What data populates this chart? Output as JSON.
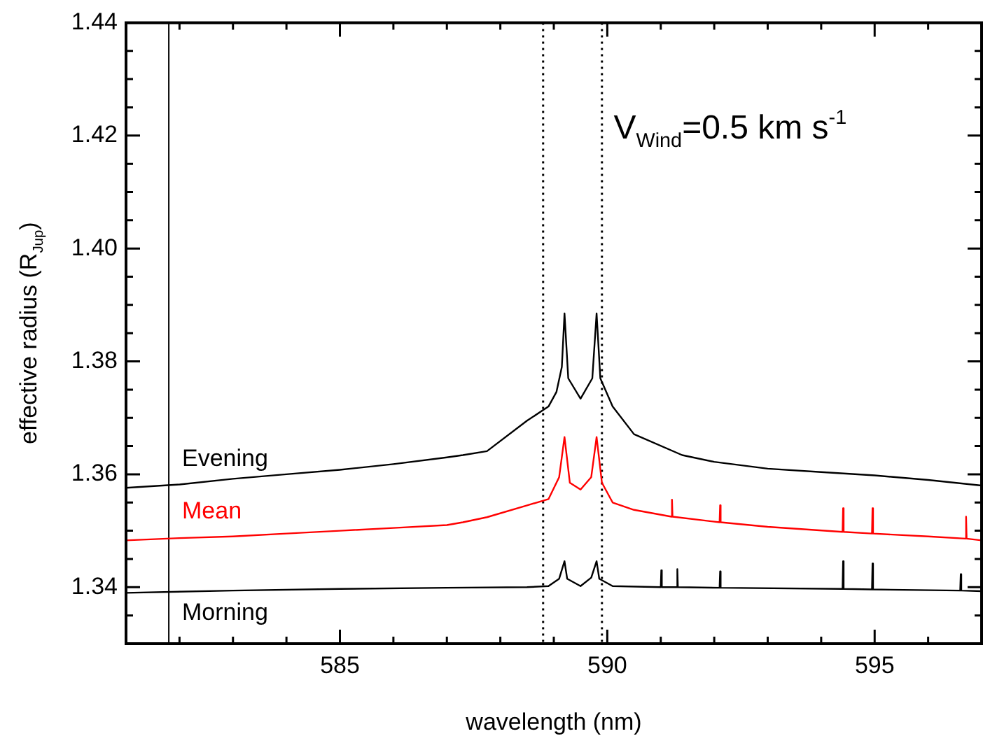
{
  "chart_data": {
    "type": "line",
    "xlabel": "wavelength (nm)",
    "ylabel": "effective radius (R$_{Jup}$)",
    "xlim": [
      581,
      597
    ],
    "ylim": [
      1.33,
      1.44
    ],
    "xticks": [
      {
        "value": 581,
        "label": null
      },
      {
        "value": 582,
        "label": null
      },
      {
        "value": 583,
        "label": null
      },
      {
        "value": 584,
        "label": null
      },
      585,
      {
        "value": 586,
        "label": null
      },
      {
        "value": 587,
        "label": null
      },
      {
        "value": 588,
        "label": null
      },
      {
        "value": 589,
        "label": null
      },
      590,
      {
        "value": 591,
        "label": null
      },
      {
        "value": 592,
        "label": null
      },
      {
        "value": 593,
        "label": null
      },
      {
        "value": 594,
        "label": null
      },
      595,
      {
        "value": 596,
        "label": null
      },
      {
        "value": 597,
        "label": null
      }
    ],
    "yticks": [
      {
        "value": 1.33,
        "label": null
      },
      {
        "value": 1.335,
        "label": null
      },
      1.34,
      {
        "value": 1.345,
        "label": null
      },
      {
        "value": 1.35,
        "label": null
      },
      {
        "value": 1.355,
        "label": null
      },
      1.36,
      {
        "value": 1.365,
        "label": null
      },
      {
        "value": 1.37,
        "label": null
      },
      {
        "value": 1.375,
        "label": null
      },
      1.38,
      {
        "value": 1.385,
        "label": null
      },
      {
        "value": 1.39,
        "label": null
      },
      {
        "value": 1.395,
        "label": null
      },
      {
        "value": 1.4,
        "label": "1.40"
      },
      {
        "value": 1.405,
        "label": null
      },
      {
        "value": 1.41,
        "label": null
      },
      {
        "value": 1.415,
        "label": null
      },
      1.42,
      {
        "value": 1.425,
        "label": null
      },
      {
        "value": 1.43,
        "label": null
      },
      {
        "value": 1.435,
        "label": null
      },
      1.44
    ],
    "grid": false,
    "legend": false,
    "marker": "none",
    "line_style": "solid",
    "annotations": [
      "V$_{Wind}$=0.5 km s$^{-1}$"
    ],
    "ref_lines": [
      {
        "axis": "x",
        "value": 581.8,
        "color": "#000000",
        "line_style": "solid"
      },
      {
        "axis": "x",
        "value": 588.8,
        "color": "#000000",
        "line_style": "dotted"
      },
      {
        "axis": "x",
        "value": 589.9,
        "color": "#000000",
        "line_style": "dotted"
      }
    ],
    "series": [
      {
        "name": "Evening",
        "color": "#000000",
        "x": [
          581,
          582,
          583,
          584,
          585,
          586,
          587,
          587.3,
          587.75,
          588.5,
          588.9,
          589.05,
          589.15,
          589.2,
          589.27,
          589.5,
          589.72,
          589.8,
          589.87,
          590.1,
          590.5,
          591.4,
          592,
          593,
          594,
          595,
          596,
          597
        ],
        "values": [
          1.3576,
          1.3582,
          1.3592,
          1.36,
          1.3608,
          1.3618,
          1.363,
          1.3634,
          1.3641,
          1.3695,
          1.372,
          1.3746,
          1.379,
          1.3885,
          1.377,
          1.3734,
          1.377,
          1.3885,
          1.377,
          1.372,
          1.3671,
          1.3634,
          1.3622,
          1.361,
          1.3604,
          1.3598,
          1.359,
          1.358
        ]
      },
      {
        "name": "Mean",
        "color": "#ff0000",
        "x": [
          581,
          582,
          583,
          584,
          585,
          586,
          587,
          587.3,
          587.75,
          588.5,
          588.9,
          589.1,
          589.2,
          589.3,
          589.5,
          589.7,
          589.8,
          589.9,
          590.1,
          590.5,
          591.2,
          591.21,
          591.22,
          592.1,
          592.11,
          592.12,
          593,
          594.4,
          594.41,
          594.42,
          594.95,
          594.96,
          594.97,
          596,
          596.7,
          596.71,
          596.72,
          597
        ],
        "values": [
          1.3483,
          1.3487,
          1.349,
          1.3495,
          1.35,
          1.3505,
          1.351,
          1.3515,
          1.3524,
          1.3545,
          1.3556,
          1.3595,
          1.3666,
          1.3585,
          1.3573,
          1.3595,
          1.3666,
          1.3585,
          1.355,
          1.3537,
          1.3525,
          1.3555,
          1.3525,
          1.3515,
          1.3545,
          1.3515,
          1.3507,
          1.3498,
          1.354,
          1.3498,
          1.3495,
          1.354,
          1.3495,
          1.349,
          1.3486,
          1.3525,
          1.3486,
          1.3483
        ]
      },
      {
        "name": "Morning",
        "color": "#000000",
        "x": [
          581,
          583,
          585,
          587,
          588.5,
          588.9,
          589.1,
          589.2,
          589.25,
          589.5,
          589.7,
          589.8,
          589.85,
          590.1,
          591,
          591.01,
          591.02,
          591.3,
          591.31,
          591.32,
          592.1,
          592.11,
          592.12,
          594.4,
          594.41,
          594.42,
          594.95,
          594.96,
          594.97,
          596.6,
          596.61,
          596.62,
          597
        ],
        "values": [
          1.339,
          1.3394,
          1.3397,
          1.3399,
          1.34,
          1.3402,
          1.3415,
          1.3446,
          1.3415,
          1.3402,
          1.3417,
          1.3446,
          1.3415,
          1.3402,
          1.34,
          1.343,
          1.34,
          1.34,
          1.3432,
          1.34,
          1.3399,
          1.3428,
          1.3399,
          1.3397,
          1.3446,
          1.3397,
          1.3396,
          1.3442,
          1.3396,
          1.3394,
          1.3423,
          1.3394,
          1.3393
        ]
      }
    ]
  }
}
